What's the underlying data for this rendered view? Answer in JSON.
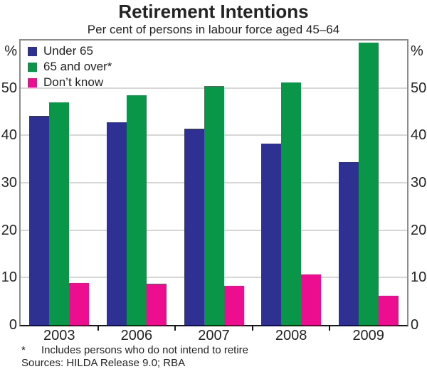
{
  "chart_data": {
    "type": "bar",
    "title": "Retirement Intentions",
    "subtitle": "Per cent of persons in labour force aged 45–64",
    "unit": "%",
    "categories": [
      "2003",
      "2006",
      "2007",
      "2008",
      "2009"
    ],
    "series": [
      {
        "name": "Under 65",
        "color": "#2e3192",
        "values": [
          44.1,
          42.8,
          41.4,
          38.2,
          34.3
        ]
      },
      {
        "name": "65 and over*",
        "color": "#0a9649",
        "values": [
          47.0,
          48.5,
          50.4,
          51.1,
          59.5
        ]
      },
      {
        "name": "Don’t know",
        "color": "#ed0e8f",
        "values": [
          8.9,
          8.7,
          8.2,
          10.7,
          6.2
        ]
      }
    ],
    "ylim": [
      0,
      60
    ],
    "yticks": [
      0,
      10,
      20,
      30,
      40,
      50
    ],
    "grid": true,
    "legend_position": "top-left",
    "y_labels_both_sides": true
  },
  "footnote": {
    "marker": "*",
    "text": "Includes persons who do not intend to retire",
    "sources": "Sources: HILDA Release 9.0; RBA"
  },
  "colors": {
    "gridline": "#d7d7d7",
    "frame": "#8c8c8c",
    "axis": "#161616",
    "text": "#232323"
  }
}
